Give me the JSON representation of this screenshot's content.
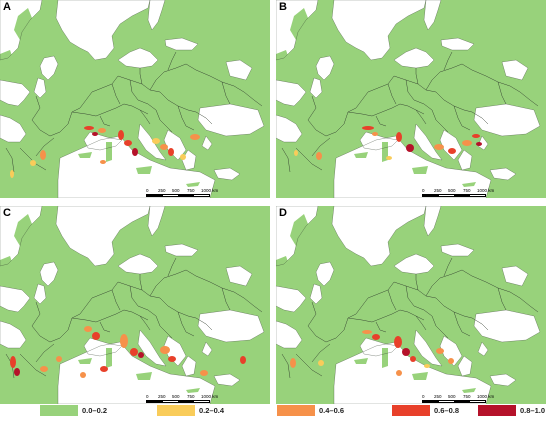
{
  "panels": [
    {
      "label": "A"
    },
    {
      "label": "B"
    },
    {
      "label": "C"
    },
    {
      "label": "D"
    }
  ],
  "scale_bar": {
    "ticks": [
      "0",
      "250",
      "500",
      "750",
      "1000 km"
    ]
  },
  "legend": [
    {
      "label": "0.0–0.2",
      "color": "#98d27b"
    },
    {
      "label": "0.2–0.4",
      "color": "#f9cc5a"
    },
    {
      "label": "0.4–0.6",
      "color": "#f6914a"
    },
    {
      "label": "0.6–0.8",
      "color": "#e8402a"
    },
    {
      "label": "0.8–1.0",
      "color": "#b5122a"
    }
  ],
  "colors": {
    "land": "#98d27b",
    "sea": "#ffffff",
    "border": "#2f3a2b"
  }
}
